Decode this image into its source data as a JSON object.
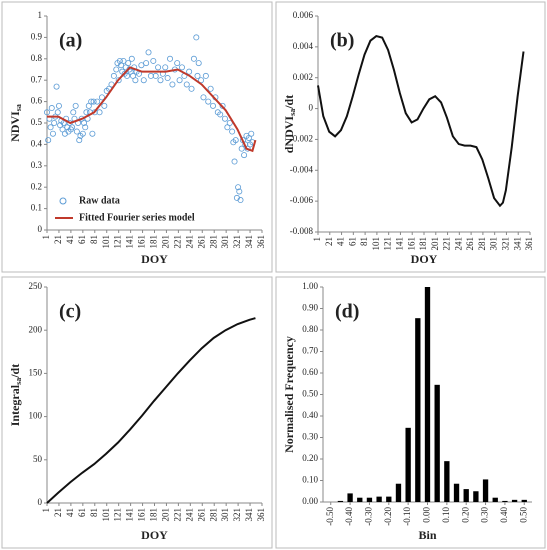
{
  "chart_data": [
    {
      "type": "scatter",
      "panel_label": "(a)",
      "xlabel": "DOY",
      "ylabel": [
        "NDVI",
        "sa"
      ],
      "xlim": [
        1,
        361
      ],
      "xticks": [
        1,
        21,
        41,
        61,
        81,
        101,
        121,
        141,
        161,
        181,
        201,
        221,
        241,
        261,
        281,
        301,
        321,
        341,
        361
      ],
      "ylim": [
        0,
        1
      ],
      "yticks": [
        0,
        0.1,
        0.2,
        0.3,
        0.4,
        0.5,
        0.6,
        0.7,
        0.8,
        0.9,
        1
      ],
      "legend": "lower left",
      "series": [
        {
          "name": "Raw data",
          "type": "scatter",
          "color": "#5b9bd5",
          "x": [
            1,
            3,
            5,
            7,
            9,
            11,
            13,
            15,
            17,
            19,
            21,
            23,
            25,
            27,
            29,
            31,
            33,
            35,
            37,
            39,
            41,
            43,
            45,
            47,
            49,
            51,
            53,
            55,
            57,
            59,
            61,
            63,
            65,
            67,
            69,
            71,
            73,
            75,
            77,
            79,
            81,
            85,
            89,
            93,
            97,
            101,
            105,
            109,
            113,
            117,
            119,
            121,
            123,
            125,
            127,
            129,
            131,
            133,
            135,
            137,
            139,
            141,
            143,
            145,
            147,
            149,
            151,
            155,
            159,
            163,
            167,
            171,
            175,
            179,
            183,
            187,
            191,
            195,
            199,
            203,
            207,
            211,
            215,
            219,
            223,
            227,
            231,
            235,
            239,
            243,
            247,
            251,
            253,
            255,
            259,
            263,
            267,
            271,
            275,
            279,
            283,
            287,
            291,
            295,
            299,
            303,
            307,
            311,
            313,
            315,
            317,
            319,
            321,
            323,
            325,
            327,
            329,
            331,
            333,
            335,
            337,
            339,
            341,
            343,
            345
          ],
          "values": [
            0.55,
            0.42,
            0.52,
            0.48,
            0.57,
            0.45,
            0.5,
            0.53,
            0.67,
            0.55,
            0.58,
            0.49,
            0.51,
            0.47,
            0.5,
            0.45,
            0.52,
            0.48,
            0.46,
            0.5,
            0.47,
            0.48,
            0.55,
            0.52,
            0.58,
            0.46,
            0.5,
            0.42,
            0.44,
            0.52,
            0.45,
            0.5,
            0.48,
            0.55,
            0.52,
            0.58,
            0.55,
            0.6,
            0.45,
            0.6,
            0.55,
            0.6,
            0.55,
            0.62,
            0.58,
            0.65,
            0.66,
            0.68,
            0.72,
            0.75,
            0.78,
            0.7,
            0.79,
            0.77,
            0.74,
            0.79,
            0.73,
            0.76,
            0.72,
            0.78,
            0.75,
            0.74,
            0.8,
            0.72,
            0.76,
            0.7,
            0.74,
            0.73,
            0.77,
            0.7,
            0.78,
            0.83,
            0.72,
            0.79,
            0.72,
            0.76,
            0.7,
            0.73,
            0.76,
            0.71,
            0.8,
            0.68,
            0.75,
            0.78,
            0.7,
            0.76,
            0.72,
            0.68,
            0.74,
            0.66,
            0.8,
            0.9,
            0.72,
            0.78,
            0.7,
            0.62,
            0.72,
            0.6,
            0.66,
            0.58,
            0.62,
            0.55,
            0.54,
            0.58,
            0.52,
            0.48,
            0.5,
            0.46,
            0.41,
            0.32,
            0.42,
            0.15,
            0.2,
            0.18,
            0.14,
            0.38,
            0.42,
            0.35,
            0.4,
            0.44,
            0.38,
            0.43,
            0.4,
            0.45,
            0.41
          ]
        },
        {
          "name": "Fitted Fourier series model",
          "type": "line",
          "color": "#c0392b",
          "x": [
            1,
            20,
            40,
            60,
            80,
            100,
            120,
            140,
            160,
            180,
            200,
            220,
            240,
            260,
            280,
            300,
            320,
            335,
            345,
            350
          ],
          "values": [
            0.53,
            0.53,
            0.5,
            0.52,
            0.55,
            0.62,
            0.7,
            0.76,
            0.74,
            0.74,
            0.74,
            0.75,
            0.72,
            0.68,
            0.62,
            0.56,
            0.47,
            0.38,
            0.37,
            0.42
          ]
        }
      ]
    },
    {
      "type": "line",
      "panel_label": "(b)",
      "xlabel": "DOY",
      "ylabel": [
        "dNDVI",
        "sa",
        "/dt"
      ],
      "xlim": [
        1,
        361
      ],
      "xticks": [
        1,
        21,
        41,
        61,
        81,
        101,
        121,
        141,
        161,
        181,
        201,
        221,
        241,
        261,
        281,
        301,
        321,
        341,
        361
      ],
      "ylim": [
        -0.008,
        0.006
      ],
      "yticks": [
        -0.008,
        -0.006,
        -0.004,
        -0.002,
        0,
        0.002,
        0.004,
        0.006
      ],
      "series": [
        {
          "color": "#111111",
          "x": [
            1,
            10,
            20,
            30,
            40,
            50,
            60,
            70,
            80,
            90,
            100,
            110,
            120,
            130,
            140,
            150,
            160,
            170,
            180,
            190,
            200,
            210,
            220,
            230,
            240,
            250,
            260,
            270,
            280,
            290,
            300,
            310,
            315,
            320,
            330,
            340,
            350
          ],
          "values": [
            0.0015,
            -0.0005,
            -0.0015,
            -0.0018,
            -0.0014,
            -0.0005,
            0.0008,
            0.0022,
            0.0035,
            0.0044,
            0.0047,
            0.0046,
            0.0038,
            0.0025,
            0.001,
            -0.0003,
            -0.0009,
            -0.0007,
            0,
            0.0006,
            0.0008,
            0.0004,
            -0.0006,
            -0.0018,
            -0.0023,
            -0.0024,
            -0.0024,
            -0.0025,
            -0.0033,
            -0.0045,
            -0.0058,
            -0.0063,
            -0.0061,
            -0.0053,
            -0.0025,
            0.0008,
            0.0037
          ]
        }
      ]
    },
    {
      "type": "line",
      "panel_label": "(c)",
      "xlabel": "DOY",
      "ylabel": [
        "Integral",
        "sa",
        "/dt"
      ],
      "xlim": [
        1,
        361
      ],
      "xticks": [
        1,
        21,
        41,
        61,
        81,
        101,
        121,
        141,
        161,
        181,
        201,
        221,
        241,
        261,
        281,
        301,
        321,
        341,
        361
      ],
      "ylim": [
        0,
        250
      ],
      "yticks": [
        0,
        50,
        100,
        150,
        200,
        250
      ],
      "series": [
        {
          "color": "#111111",
          "x": [
            1,
            20,
            40,
            60,
            80,
            100,
            120,
            140,
            160,
            180,
            200,
            220,
            240,
            260,
            280,
            300,
            320,
            340,
            350
          ],
          "values": [
            0,
            12,
            24,
            35,
            45,
            57,
            70,
            85,
            101,
            118,
            134,
            150,
            165,
            179,
            191,
            200,
            207,
            212,
            214
          ]
        }
      ]
    },
    {
      "type": "bar",
      "panel_label": "(d)",
      "xlabel": "Bin",
      "ylabel": [
        "Normalised Frequency"
      ],
      "xlim": [
        -0.54,
        0.54
      ],
      "xticks": [
        {
          "value": -0.5,
          "label": "-0.50"
        },
        {
          "value": -0.4,
          "label": "-0.40"
        },
        {
          "value": -0.3,
          "label": "-0.30"
        },
        {
          "value": -0.2,
          "label": "-0.20"
        },
        {
          "value": -0.1,
          "label": "-0.10"
        },
        {
          "value": 0,
          "label": "0.00"
        },
        {
          "value": 0.1,
          "label": "0.10"
        },
        {
          "value": 0.2,
          "label": "0.20"
        },
        {
          "value": 0.3,
          "label": "0.30"
        },
        {
          "value": 0.4,
          "label": "0.40"
        },
        {
          "value": 0.5,
          "label": "0.50"
        }
      ],
      "ylim": [
        0,
        1
      ],
      "yticks": [
        {
          "value": 0,
          "label": "0.00"
        },
        {
          "value": 0.1,
          "label": "0.10"
        },
        {
          "value": 0.2,
          "label": "0.20"
        },
        {
          "value": 0.3,
          "label": "0.30"
        },
        {
          "value": 0.4,
          "label": "0.40"
        },
        {
          "value": 0.5,
          "label": "0.50"
        },
        {
          "value": 0.6,
          "label": "0.60"
        },
        {
          "value": 0.7,
          "label": "0.70"
        },
        {
          "value": 0.8,
          "label": "0.80"
        },
        {
          "value": 0.9,
          "label": "0.90"
        },
        {
          "value": 1,
          "label": "1.00"
        }
      ],
      "color": "#000000",
      "x": [
        -0.45,
        -0.4,
        -0.35,
        -0.3,
        -0.25,
        -0.2,
        -0.15,
        -0.1,
        -0.05,
        0,
        0.05,
        0.1,
        0.15,
        0.2,
        0.25,
        0.3,
        0.35,
        0.4,
        0.45,
        0.5
      ],
      "values": [
        0.005,
        0.04,
        0.02,
        0.02,
        0.025,
        0.025,
        0.085,
        0.345,
        0.855,
        1,
        0.545,
        0.19,
        0.085,
        0.06,
        0.05,
        0.105,
        0.02,
        0.005,
        0.01,
        0.01
      ]
    }
  ]
}
